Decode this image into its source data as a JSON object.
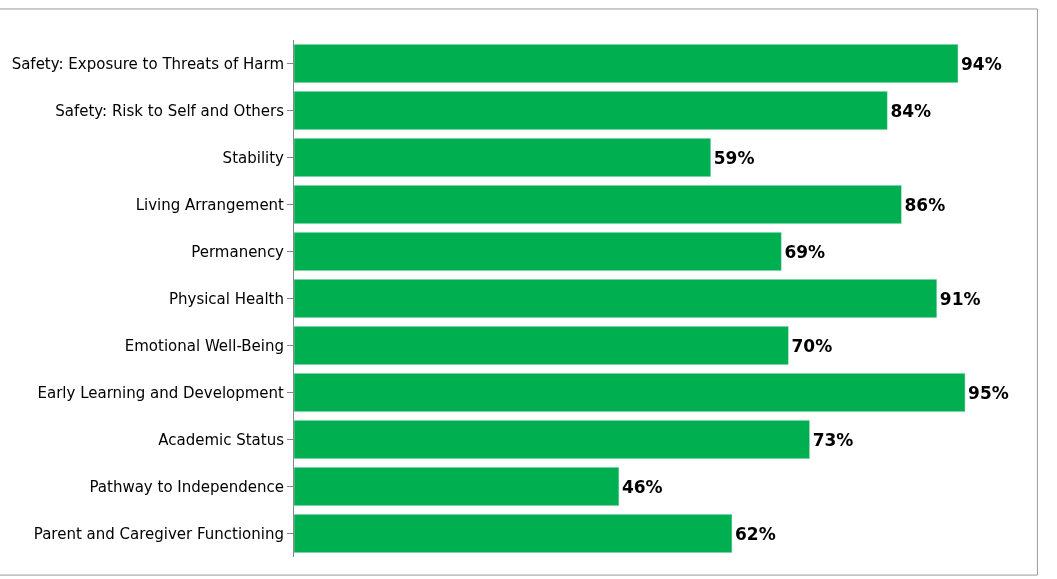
{
  "chart_data": {
    "type": "bar",
    "orientation": "horizontal",
    "categories": [
      "Safety: Exposure to Threats of Harm",
      "Safety: Risk to Self and Others",
      "Stability",
      "Living Arrangement",
      "Permanency",
      "Physical Health",
      "Emotional Well-Being",
      "Early Learning and Development",
      "Academic Status",
      "Pathway to Independence",
      "Parent and Caregiver Functioning"
    ],
    "values": [
      94,
      84,
      59,
      86,
      69,
      91,
      70,
      95,
      73,
      46,
      62
    ],
    "value_labels": [
      "94%",
      "84%",
      "59%",
      "86%",
      "69%",
      "91%",
      "70%",
      "95%",
      "73%",
      "46%",
      "62%"
    ],
    "color": "#00b050"
  }
}
